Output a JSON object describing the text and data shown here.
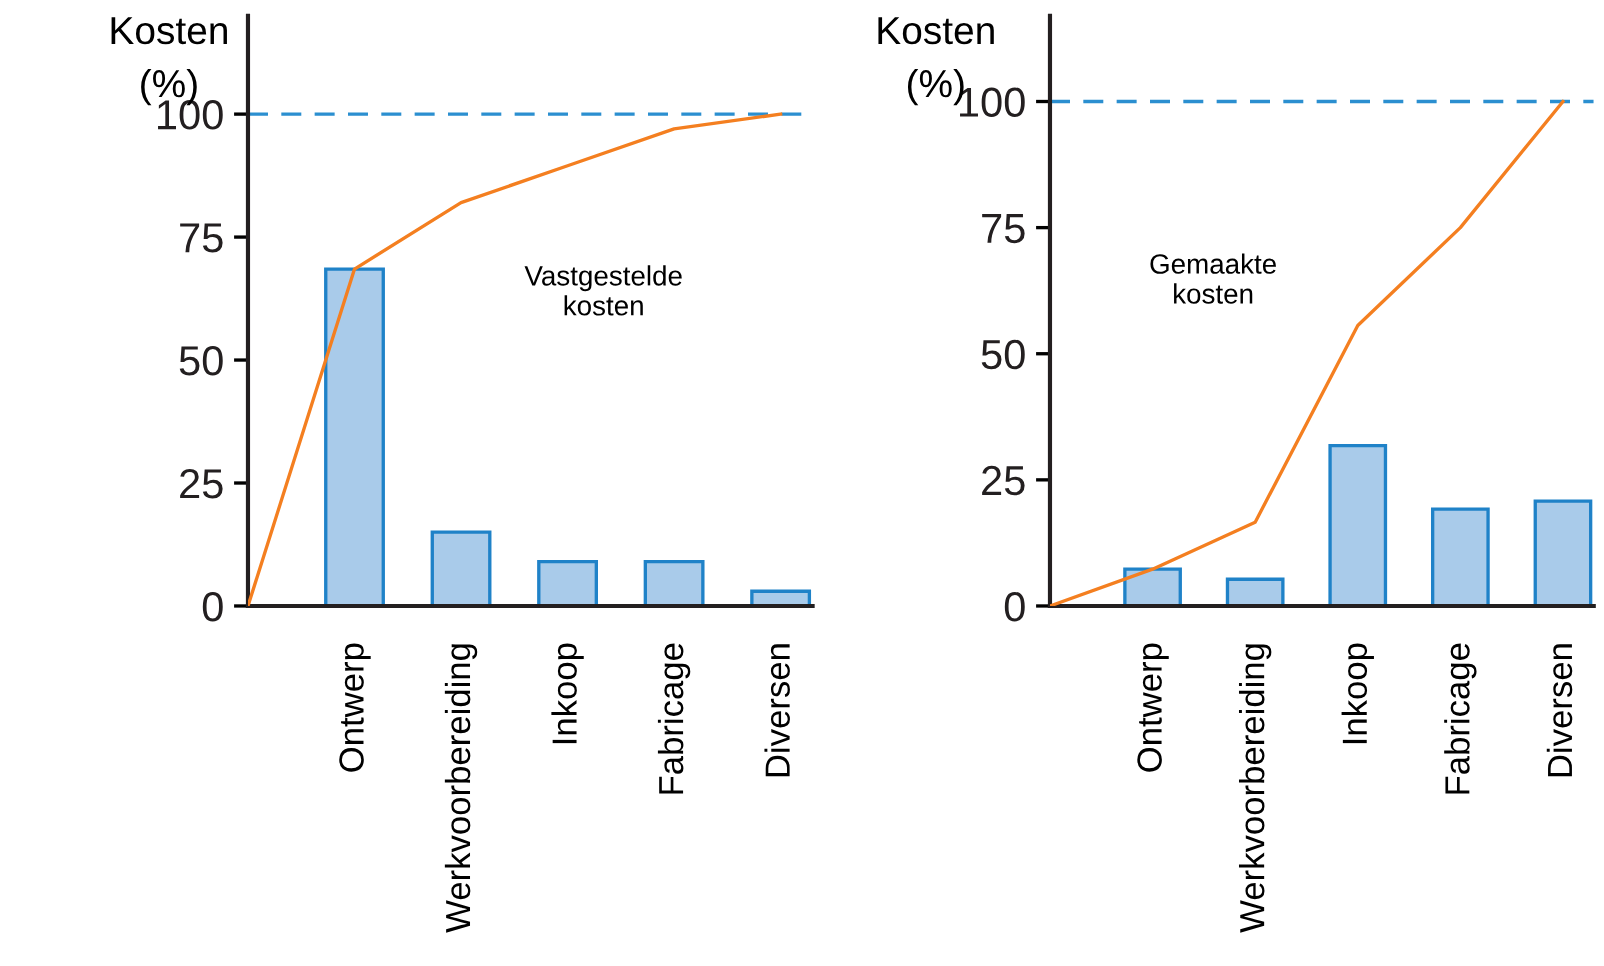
{
  "chart_data": [
    {
      "type": "bar",
      "ylabel": "Kosten\n(%)",
      "categories": [
        null,
        "Ontwerp",
        "Werkvoorbereiding",
        "Inkoop",
        "Fabricage",
        "Diversen"
      ],
      "series": [
        {
          "color": "#a9cbea",
          "values": [
            null,
            68.5,
            15,
            9,
            9,
            3
          ]
        },
        {
          "type": "line",
          "color": "#f47f20",
          "values": [
            0,
            68.5,
            82,
            89.5,
            97,
            100
          ]
        }
      ],
      "ylim": [
        0,
        120
      ],
      "yticks": [
        0,
        25,
        50,
        75,
        100
      ],
      "ref_lines": [
        {
          "axis": "y",
          "value": 100,
          "color": "#2b8fd0",
          "line_style": "dashed"
        }
      ],
      "annotations": [
        "Vastgestelde\nkosten"
      ],
      "grid": false,
      "legend": false
    },
    {
      "type": "bar",
      "ylabel": "Kosten\n(%)",
      "categories": [
        null,
        "Ontwerp",
        "Werkvoorbereiding",
        "Inkoop",
        "Fabricage",
        "Diversen"
      ],
      "series": [
        {
          "color": "#a9cbea",
          "values": [
            null,
            7.3,
            5.3,
            31.8,
            19.2,
            20.8
          ]
        },
        {
          "type": "line",
          "color": "#f47f20",
          "values": [
            0,
            7.3,
            16.6,
            55.6,
            75,
            100
          ]
        }
      ],
      "ylim": [
        0,
        117
      ],
      "yticks": [
        0,
        25,
        50,
        75,
        100
      ],
      "ref_lines": [
        {
          "axis": "y",
          "value": 100,
          "color": "#2b8fd0",
          "line_style": "dashed"
        }
      ],
      "annotations": [
        "Gemaakte\nkosten"
      ],
      "grid": false,
      "legend": false
    }
  ]
}
